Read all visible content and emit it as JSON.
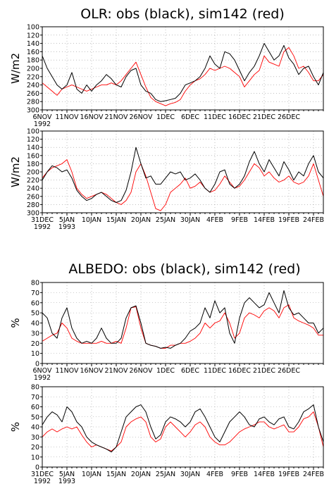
{
  "titles": {
    "olr": "OLR: obs (black), sim142 (red)",
    "albedo": "ALBEDO: obs (black), sim142 (red)"
  },
  "colors": {
    "obs": "#000000",
    "sim": "#ff0000",
    "grid": "#9a9a9a"
  },
  "chart_data": [
    {
      "type": "line",
      "ylabel": "W/m2",
      "ylim": [
        300,
        100
      ],
      "yticks": [
        100,
        120,
        140,
        160,
        180,
        200,
        220,
        240,
        260,
        280,
        300
      ],
      "xlim": [
        0,
        57
      ],
      "xticks": [
        {
          "x": 0,
          "label": "6NOV",
          "sub": "1992"
        },
        {
          "x": 5,
          "label": "11NOV"
        },
        {
          "x": 10,
          "label": "16NOV"
        },
        {
          "x": 15,
          "label": "21NOV"
        },
        {
          "x": 20,
          "label": "26NOV"
        },
        {
          "x": 25,
          "label": "1DEC"
        },
        {
          "x": 30,
          "label": "6DEC"
        },
        {
          "x": 35,
          "label": "11DEC"
        },
        {
          "x": 40,
          "label": "16DEC"
        },
        {
          "x": 45,
          "label": "21DEC"
        },
        {
          "x": 50,
          "label": "26DEC"
        }
      ],
      "grid": true,
      "x": [
        0,
        1,
        2,
        3,
        4,
        5,
        6,
        7,
        8,
        9,
        10,
        11,
        12,
        13,
        14,
        15,
        16,
        17,
        18,
        19,
        20,
        21,
        22,
        23,
        24,
        25,
        26,
        27,
        28,
        29,
        30,
        31,
        32,
        33,
        34,
        35,
        36,
        37,
        38,
        39,
        40,
        41,
        42,
        43,
        44,
        45,
        46,
        47,
        48,
        49,
        50,
        51,
        52,
        53,
        54,
        55,
        56,
        57
      ],
      "series": [
        {
          "name": "obs",
          "values": [
            170,
            200,
            220,
            240,
            250,
            240,
            210,
            250,
            260,
            240,
            255,
            240,
            230,
            215,
            225,
            240,
            245,
            220,
            205,
            200,
            240,
            255,
            260,
            275,
            280,
            278,
            275,
            272,
            260,
            240,
            235,
            230,
            220,
            200,
            170,
            190,
            200,
            160,
            165,
            180,
            205,
            230,
            210,
            195,
            170,
            140,
            160,
            180,
            170,
            145,
            175,
            190,
            215,
            200,
            195,
            220,
            240,
            210
          ]
        },
        {
          "name": "sim",
          "values": [
            235,
            245,
            255,
            265,
            250,
            245,
            240,
            245,
            250,
            255,
            250,
            245,
            240,
            240,
            235,
            240,
            230,
            215,
            200,
            185,
            215,
            245,
            270,
            280,
            285,
            290,
            285,
            282,
            275,
            255,
            240,
            230,
            225,
            215,
            200,
            205,
            200,
            195,
            200,
            210,
            220,
            245,
            230,
            215,
            205,
            170,
            185,
            190,
            195,
            160,
            150,
            170,
            200,
            195,
            210,
            230,
            230,
            215
          ]
        }
      ]
    },
    {
      "type": "line",
      "ylabel": "W/m2",
      "ylim": [
        300,
        100
      ],
      "yticks": [
        100,
        120,
        140,
        160,
        180,
        200,
        220,
        240,
        260,
        280,
        300
      ],
      "xlim": [
        0,
        57
      ],
      "xticks": [
        {
          "x": 0,
          "label": "31DEC",
          "sub": "1992"
        },
        {
          "x": 5,
          "label": "5JAN",
          "sub": "1993"
        },
        {
          "x": 10,
          "label": "10JAN"
        },
        {
          "x": 15,
          "label": "15JAN"
        },
        {
          "x": 20,
          "label": "20JAN"
        },
        {
          "x": 25,
          "label": "25JAN"
        },
        {
          "x": 30,
          "label": "30JAN"
        },
        {
          "x": 35,
          "label": "4FEB"
        },
        {
          "x": 40,
          "label": "9FEB"
        },
        {
          "x": 45,
          "label": "14FEB"
        },
        {
          "x": 50,
          "label": "19FEB"
        },
        {
          "x": 55,
          "label": "24FEB"
        }
      ],
      "grid": true,
      "x": [
        0,
        1,
        2,
        3,
        4,
        5,
        6,
        7,
        8,
        9,
        10,
        11,
        12,
        13,
        14,
        15,
        16,
        17,
        18,
        19,
        20,
        21,
        22,
        23,
        24,
        25,
        26,
        27,
        28,
        29,
        30,
        31,
        32,
        33,
        34,
        35,
        36,
        37,
        38,
        39,
        40,
        41,
        42,
        43,
        44,
        45,
        46,
        47,
        48,
        49,
        50,
        51,
        52,
        53,
        54,
        55,
        56,
        57
      ],
      "series": [
        {
          "name": "obs",
          "values": [
            220,
            200,
            185,
            190,
            200,
            195,
            215,
            245,
            260,
            270,
            265,
            255,
            250,
            260,
            270,
            275,
            270,
            245,
            200,
            140,
            180,
            215,
            210,
            230,
            230,
            215,
            200,
            205,
            200,
            220,
            215,
            205,
            220,
            240,
            250,
            230,
            200,
            195,
            230,
            240,
            230,
            210,
            175,
            150,
            180,
            200,
            170,
            190,
            210,
            175,
            195,
            220,
            200,
            210,
            180,
            160,
            200,
            215
          ]
        },
        {
          "name": "sim",
          "values": [
            215,
            200,
            190,
            185,
            180,
            170,
            200,
            240,
            255,
            265,
            260,
            255,
            250,
            255,
            265,
            275,
            280,
            270,
            250,
            200,
            180,
            210,
            250,
            290,
            295,
            280,
            250,
            240,
            230,
            215,
            240,
            235,
            225,
            240,
            250,
            245,
            230,
            210,
            225,
            240,
            235,
            220,
            200,
            180,
            190,
            210,
            200,
            215,
            225,
            220,
            210,
            225,
            230,
            225,
            210,
            180,
            220,
            260
          ]
        }
      ]
    },
    {
      "type": "line",
      "ylabel": "%",
      "ylim": [
        0,
        80
      ],
      "yticks": [
        0,
        10,
        20,
        30,
        40,
        50,
        60,
        70,
        80
      ],
      "xlim": [
        0,
        57
      ],
      "xticks": [
        {
          "x": 0,
          "label": "6NOV",
          "sub": "1992"
        },
        {
          "x": 5,
          "label": "11NOV"
        },
        {
          "x": 10,
          "label": "16NOV"
        },
        {
          "x": 15,
          "label": "21NOV"
        },
        {
          "x": 20,
          "label": "26NOV"
        },
        {
          "x": 25,
          "label": "1DEC"
        },
        {
          "x": 30,
          "label": "6DEC"
        },
        {
          "x": 35,
          "label": "11DEC"
        },
        {
          "x": 40,
          "label": "16DEC"
        },
        {
          "x": 45,
          "label": "21DEC"
        },
        {
          "x": 50,
          "label": "26DEC"
        }
      ],
      "grid": true,
      "x": [
        0,
        1,
        2,
        3,
        4,
        5,
        6,
        7,
        8,
        9,
        10,
        11,
        12,
        13,
        14,
        15,
        16,
        17,
        18,
        19,
        20,
        21,
        22,
        23,
        24,
        25,
        26,
        27,
        28,
        29,
        30,
        31,
        32,
        33,
        34,
        35,
        36,
        37,
        38,
        39,
        40,
        41,
        42,
        43,
        44,
        45,
        46,
        47,
        48,
        49,
        50,
        51,
        52,
        53,
        54,
        55,
        56,
        57
      ],
      "series": [
        {
          "name": "obs",
          "values": [
            50,
            45,
            30,
            25,
            45,
            55,
            35,
            25,
            20,
            22,
            20,
            25,
            35,
            25,
            20,
            20,
            25,
            45,
            55,
            57,
            40,
            20,
            18,
            17,
            15,
            16,
            15,
            18,
            20,
            25,
            32,
            35,
            40,
            55,
            45,
            62,
            50,
            55,
            30,
            20,
            45,
            60,
            65,
            60,
            55,
            58,
            70,
            60,
            50,
            72,
            55,
            48,
            50,
            45,
            40,
            40,
            30,
            35
          ]
        },
        {
          "name": "sim",
          "values": [
            22,
            25,
            28,
            30,
            40,
            35,
            25,
            22,
            20,
            20,
            20,
            20,
            22,
            20,
            20,
            22,
            20,
            35,
            55,
            56,
            35,
            20,
            18,
            17,
            15,
            15,
            18,
            18,
            20,
            20,
            22,
            25,
            30,
            40,
            35,
            40,
            42,
            50,
            40,
            25,
            30,
            45,
            50,
            48,
            45,
            52,
            55,
            52,
            45,
            55,
            58,
            45,
            42,
            40,
            38,
            35,
            28,
            28
          ]
        }
      ]
    },
    {
      "type": "line",
      "ylabel": "%",
      "ylim": [
        0,
        80
      ],
      "yticks": [
        0,
        10,
        20,
        30,
        40,
        50,
        60,
        70,
        80
      ],
      "xlim": [
        0,
        57
      ],
      "xticks": [
        {
          "x": 0,
          "label": "31DEC",
          "sub": "1992"
        },
        {
          "x": 5,
          "label": "5JAN",
          "sub": "1993"
        },
        {
          "x": 10,
          "label": "10JAN"
        },
        {
          "x": 15,
          "label": "15JAN"
        },
        {
          "x": 20,
          "label": "20JAN"
        },
        {
          "x": 25,
          "label": "25JAN"
        },
        {
          "x": 30,
          "label": "30JAN"
        },
        {
          "x": 35,
          "label": "4FEB"
        },
        {
          "x": 40,
          "label": "9FEB"
        },
        {
          "x": 45,
          "label": "14FEB"
        },
        {
          "x": 50,
          "label": "19FEB"
        },
        {
          "x": 55,
          "label": "24FEB"
        }
      ],
      "grid": true,
      "x": [
        0,
        1,
        2,
        3,
        4,
        5,
        6,
        7,
        8,
        9,
        10,
        11,
        12,
        13,
        14,
        15,
        16,
        17,
        18,
        19,
        20,
        21,
        22,
        23,
        24,
        25,
        26,
        27,
        28,
        29,
        30,
        31,
        32,
        33,
        34,
        35,
        36,
        37,
        38,
        39,
        40,
        41,
        42,
        43,
        44,
        45,
        46,
        47,
        48,
        49,
        50,
        51,
        52,
        53,
        54,
        55,
        56,
        57
      ],
      "series": [
        {
          "name": "obs",
          "values": [
            42,
            50,
            55,
            52,
            45,
            60,
            55,
            45,
            40,
            30,
            25,
            22,
            20,
            18,
            15,
            20,
            35,
            50,
            55,
            60,
            62,
            55,
            40,
            28,
            32,
            45,
            50,
            48,
            45,
            40,
            45,
            55,
            58,
            50,
            40,
            30,
            25,
            35,
            45,
            50,
            55,
            50,
            42,
            40,
            48,
            50,
            45,
            42,
            48,
            50,
            40,
            38,
            45,
            55,
            58,
            62,
            40,
            25
          ]
        },
        {
          "name": "sim",
          "values": [
            30,
            35,
            38,
            35,
            38,
            40,
            38,
            40,
            32,
            25,
            20,
            22,
            20,
            18,
            16,
            20,
            25,
            40,
            45,
            48,
            50,
            45,
            30,
            25,
            28,
            40,
            45,
            40,
            35,
            30,
            35,
            42,
            45,
            40,
            30,
            25,
            22,
            22,
            25,
            30,
            35,
            38,
            40,
            42,
            45,
            45,
            40,
            38,
            40,
            42,
            35,
            35,
            40,
            48,
            50,
            55,
            40,
            20
          ]
        }
      ]
    }
  ]
}
